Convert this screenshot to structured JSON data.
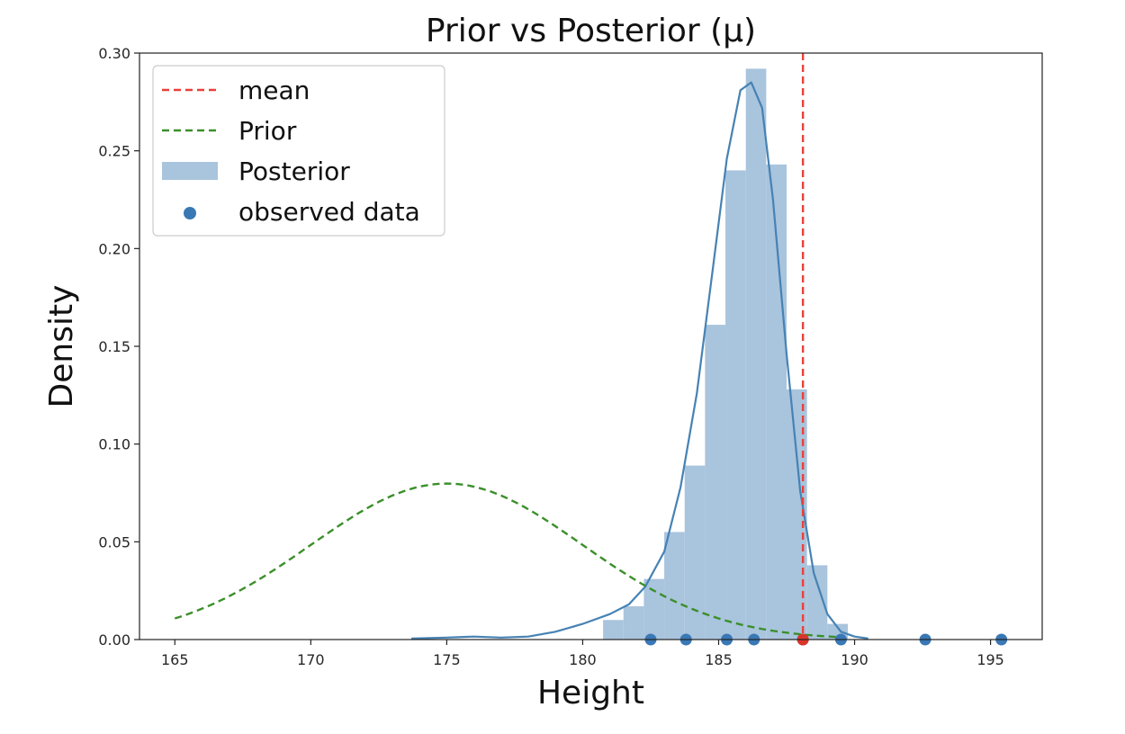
{
  "chart_data": {
    "type": "histogram",
    "title": "Prior vs Posterior (μ)",
    "xlabel": "Height",
    "ylabel": "Density",
    "xlim": [
      163.7,
      196.9
    ],
    "ylim": [
      0,
      0.3
    ],
    "xticks": [
      165,
      170,
      175,
      180,
      185,
      190,
      195
    ],
    "xtick_labels": [
      "165",
      "170",
      "175",
      "180",
      "185",
      "190",
      "195"
    ],
    "yticks": [
      0,
      0.05,
      0.1,
      0.15,
      0.2,
      0.25,
      0.3
    ],
    "ytick_labels": [
      "0.00",
      "0.05",
      "0.10",
      "0.15",
      "0.20",
      "0.25",
      "0.30"
    ],
    "grid": false,
    "legend_position": "top-left",
    "legend": [
      "mean",
      "Prior",
      "Posterior",
      "observed data"
    ],
    "colors": {
      "posterior": "#4682b4",
      "posterior_fill": "#a9c4dd",
      "prior": "#3b8f2a",
      "mean": "#e8413b",
      "mean_point": "#d9342b",
      "observed": "#3a78b5"
    },
    "posterior_histogram": {
      "bin_edges": [
        180.75,
        181.5,
        182.25,
        183.0,
        183.75,
        184.5,
        185.25,
        186.0,
        186.75,
        187.5,
        188.25,
        189.0,
        189.75
      ],
      "density": [
        0.01,
        0.017,
        0.031,
        0.055,
        0.089,
        0.161,
        0.24,
        0.292,
        0.243,
        0.128,
        0.038,
        0.008
      ]
    },
    "posterior_kde": {
      "x": [
        173.7,
        175.0,
        176.0,
        177.0,
        178.0,
        179.0,
        180.0,
        181.0,
        181.7,
        182.3,
        183.0,
        183.6,
        184.2,
        184.8,
        185.3,
        185.8,
        186.2,
        186.6,
        187.0,
        187.5,
        188.0,
        188.5,
        189.0,
        189.5,
        190.0,
        190.5
      ],
      "y": [
        0.0005,
        0.001,
        0.0015,
        0.001,
        0.0015,
        0.004,
        0.008,
        0.013,
        0.018,
        0.027,
        0.045,
        0.078,
        0.126,
        0.191,
        0.246,
        0.281,
        0.285,
        0.272,
        0.225,
        0.146,
        0.076,
        0.034,
        0.013,
        0.004,
        0.0015,
        0.0005
      ]
    },
    "prior": {
      "distribution": "normal",
      "mean": 175,
      "sd": 5,
      "x_range": [
        165,
        189.5
      ]
    },
    "mean_line": 188.1,
    "observed_data": [
      182.5,
      183.8,
      185.3,
      186.3,
      188.1,
      189.5,
      192.6,
      195.4
    ]
  }
}
